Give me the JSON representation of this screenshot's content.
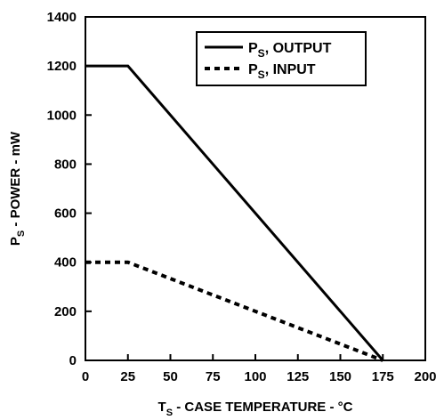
{
  "chart_data": {
    "type": "line",
    "xlabel_main": "T",
    "xlabel_sub": "S",
    "xlabel_rest": " - CASE TEMPERATURE - °C",
    "ylabel_main": "P",
    "ylabel_sub": "S",
    "ylabel_rest": " - POWER - mW",
    "xlim": [
      0,
      200
    ],
    "ylim": [
      0,
      1400
    ],
    "x_ticks": [
      0,
      25,
      50,
      75,
      100,
      125,
      150,
      175,
      200
    ],
    "y_ticks": [
      0,
      200,
      400,
      600,
      800,
      1000,
      1200,
      1400
    ],
    "grid": false,
    "legend_position": "top-right",
    "series": [
      {
        "name_main": "P",
        "name_sub": "S",
        "name_rest": ", OUTPUT",
        "style": "solid",
        "x": [
          0,
          25,
          175
        ],
        "y": [
          1200,
          1200,
          0
        ]
      },
      {
        "name_main": "P",
        "name_sub": "S",
        "name_rest": ", INPUT",
        "style": "dotted",
        "x": [
          0,
          25,
          175
        ],
        "y": [
          400,
          400,
          0
        ]
      }
    ]
  }
}
